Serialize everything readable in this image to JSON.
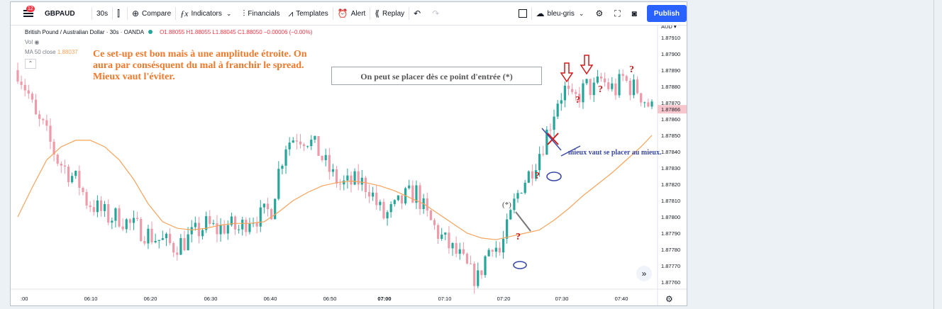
{
  "toolbar": {
    "badge": "12",
    "symbol": "GBPAUD",
    "interval": "30s",
    "compare": "Compare",
    "indicators": "Indicators",
    "financials": "Financials",
    "templates": "Templates",
    "alert": "Alert",
    "replay": "Replay",
    "layout_name": "bleu-gris",
    "publish": "Publish"
  },
  "legend": {
    "title": "British Pound / Australian Dollar · 30s · OANDA",
    "ohlc": "O1.88055 H1.88055 L1.88045 C1.88050 −0.00006 (−0.00%)",
    "vol": "Vol",
    "ma_label": "MA 50 close",
    "ma_value": "1.88037"
  },
  "annotations": {
    "note_orange": "Ce set-up est bon mais à une amplitude étroite. On aura par consésquent du mal à franchir le spread. Mieux vaut l'éviter.",
    "note_box": "On peut se placer dès ce point  d'entrée (*)",
    "note_blue": "mieux vaut se placer au mieux.",
    "star_label": "(*)",
    "question_mark": "?"
  },
  "colors": {
    "up": "#26a69a",
    "down": "#ef9aa9",
    "ma": "#f7a35c",
    "publish": "#2962ff",
    "annotation_orange": "#f0782b",
    "annotation_red": "#d11a1a",
    "annotation_blue": "#3b4aa6"
  },
  "icons": [
    "menu-icon",
    "candles-icon",
    "compare-icon",
    "indicators-icon",
    "financials-icon",
    "templates-icon",
    "alert-icon",
    "replay-icon",
    "undo-icon",
    "redo-icon",
    "settings-icon",
    "fullscreen-icon",
    "camera-icon",
    "eye-icon"
  ],
  "chart_data": {
    "type": "candlestick",
    "currency": "AUD",
    "last_price": "1.87866",
    "y_ticks": [
      "1.87910",
      "1.87900",
      "1.87890",
      "1.87880",
      "1.87870",
      "1.87860",
      "1.87850",
      "1.87840",
      "1.87830",
      "1.87820",
      "1.87810",
      "1.87800",
      "1.87790",
      "1.87780",
      "1.87770",
      "1.87760"
    ],
    "x_ticks": [
      ":00",
      "06:10",
      "06:20",
      "06:30",
      "06:40",
      "06:50",
      "07:00",
      "07:10",
      "07:20",
      "07:30",
      "07:40"
    ],
    "ylim": [
      1.87755,
      1.87915
    ],
    "close_path": [
      [
        0,
        1.8789
      ],
      [
        3,
        1.87875
      ],
      [
        5,
        1.8786
      ],
      [
        7,
        1.87855
      ],
      [
        9,
        1.87845
      ],
      [
        11,
        1.87835
      ],
      [
        13,
        1.8783
      ],
      [
        15,
        1.87825
      ],
      [
        17,
        1.8782
      ],
      [
        19,
        1.8781
      ],
      [
        22,
        1.87805
      ],
      [
        25,
        1.878
      ],
      [
        28,
        1.878
      ],
      [
        31,
        1.87795
      ],
      [
        34,
        1.87792
      ],
      [
        37,
        1.87788
      ],
      [
        40,
        1.87785
      ],
      [
        43,
        1.87782
      ],
      [
        46,
        1.87785
      ],
      [
        49,
        1.8779
      ],
      [
        52,
        1.87795
      ],
      [
        55,
        1.87792
      ],
      [
        58,
        1.87795
      ],
      [
        61,
        1.87792
      ],
      [
        64,
        1.878
      ],
      [
        67,
        1.878
      ],
      [
        70,
        1.87805
      ],
      [
        72,
        1.87828
      ],
      [
        74,
        1.87845
      ],
      [
        77,
        1.8785
      ],
      [
        80,
        1.87848
      ],
      [
        83,
        1.8784
      ],
      [
        85,
        1.87832
      ],
      [
        87,
        1.87825
      ],
      [
        89,
        1.8782
      ],
      [
        91,
        1.8782
      ],
      [
        94,
        1.87822
      ],
      [
        97,
        1.87818
      ],
      [
        99,
        1.87808
      ],
      [
        101,
        1.878
      ],
      [
        104,
        1.87805
      ],
      [
        107,
        1.87812
      ],
      [
        110,
        1.87815
      ],
      [
        113,
        1.878
      ],
      [
        116,
        1.8779
      ],
      [
        119,
        1.87782
      ],
      [
        122,
        1.87775
      ],
      [
        125,
        1.87765
      ],
      [
        127,
        1.87762
      ],
      [
        129,
        1.87775
      ],
      [
        131,
        1.87785
      ],
      [
        133,
        1.87778
      ],
      [
        135,
        1.87792
      ],
      [
        137,
        1.87808
      ],
      [
        139,
        1.8782
      ],
      [
        141,
        1.87826
      ],
      [
        143,
        1.87835
      ],
      [
        145,
        1.87845
      ],
      [
        147,
        1.87858
      ],
      [
        149,
        1.87872
      ],
      [
        151,
        1.87878
      ],
      [
        153,
        1.8787
      ],
      [
        155,
        1.87875
      ],
      [
        157,
        1.8788
      ],
      [
        159,
        1.87878
      ],
      [
        161,
        1.87884
      ],
      [
        163,
        1.8788
      ],
      [
        165,
        1.87878
      ],
      [
        167,
        1.87885
      ],
      [
        169,
        1.8788
      ],
      [
        171,
        1.87878
      ],
      [
        173,
        1.87872
      ],
      [
        175,
        1.87866
      ]
    ],
    "ma_path": [
      [
        0,
        1.878
      ],
      [
        4,
        1.87818
      ],
      [
        8,
        1.87835
      ],
      [
        12,
        1.87843
      ],
      [
        16,
        1.87847
      ],
      [
        20,
        1.87847
      ],
      [
        24,
        1.87843
      ],
      [
        28,
        1.87835
      ],
      [
        32,
        1.87823
      ],
      [
        36,
        1.87808
      ],
      [
        40,
        1.87797
      ],
      [
        44,
        1.87793
      ],
      [
        48,
        1.87792
      ],
      [
        52,
        1.87793
      ],
      [
        56,
        1.87795
      ],
      [
        60,
        1.87796
      ],
      [
        64,
        1.87796
      ],
      [
        68,
        1.87797
      ],
      [
        72,
        1.87803
      ],
      [
        76,
        1.8781
      ],
      [
        80,
        1.87815
      ],
      [
        84,
        1.87819
      ],
      [
        88,
        1.87821
      ],
      [
        92,
        1.87822
      ],
      [
        96,
        1.87821
      ],
      [
        100,
        1.87819
      ],
      [
        104,
        1.87816
      ],
      [
        108,
        1.87812
      ],
      [
        112,
        1.87808
      ],
      [
        116,
        1.87802
      ],
      [
        120,
        1.87796
      ],
      [
        124,
        1.8779
      ],
      [
        128,
        1.87787
      ],
      [
        132,
        1.87786
      ],
      [
        136,
        1.87788
      ],
      [
        140,
        1.8779
      ],
      [
        144,
        1.87792
      ],
      [
        148,
        1.87798
      ],
      [
        152,
        1.87805
      ],
      [
        156,
        1.87813
      ],
      [
        160,
        1.8782
      ],
      [
        164,
        1.87827
      ],
      [
        168,
        1.87835
      ],
      [
        172,
        1.87843
      ],
      [
        175,
        1.8785
      ]
    ]
  }
}
